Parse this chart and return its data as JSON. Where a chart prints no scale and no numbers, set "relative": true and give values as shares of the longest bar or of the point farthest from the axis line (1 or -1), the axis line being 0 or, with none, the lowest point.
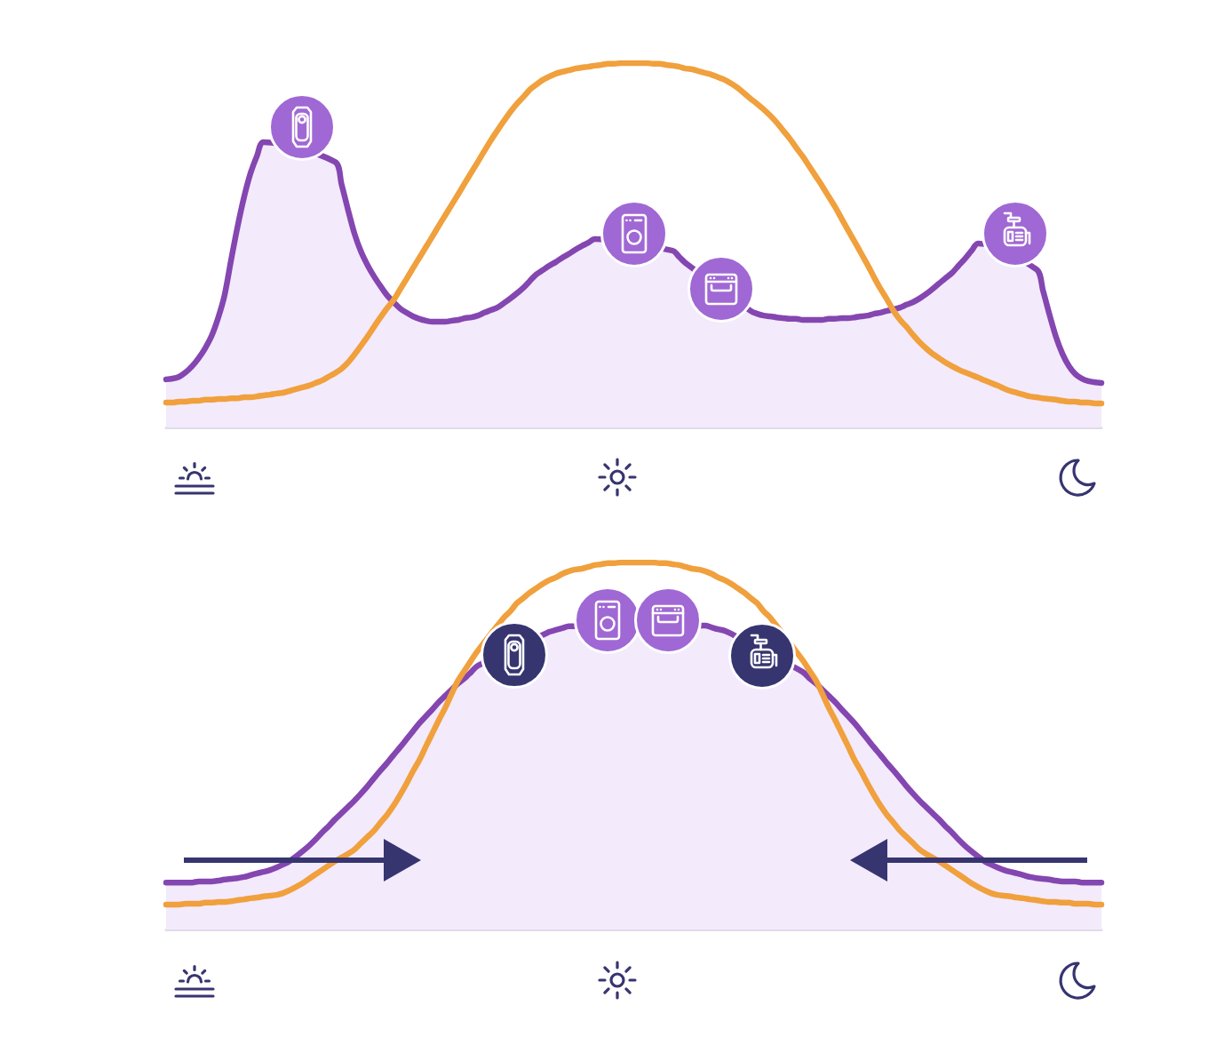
{
  "chart_data": [
    {
      "type": "line",
      "relative": true,
      "marker": "none",
      "categories": [
        null,
        null,
        null,
        null,
        null,
        null,
        null,
        null,
        null,
        null,
        null,
        null,
        null,
        null,
        null,
        null,
        null,
        null,
        null,
        null,
        null,
        null,
        null,
        null,
        null,
        null,
        null,
        null,
        null,
        null,
        null,
        null,
        null,
        null,
        null,
        null,
        null,
        null,
        null,
        null,
        null,
        null,
        null,
        null,
        null,
        null,
        null,
        null,
        null,
        null,
        null,
        null,
        null,
        null,
        null,
        null,
        null,
        null,
        null,
        null,
        null,
        null,
        null,
        null,
        null,
        null,
        null,
        null,
        null,
        null,
        null,
        null,
        null,
        null,
        null,
        null,
        null,
        null,
        null,
        null,
        null,
        null,
        null,
        null,
        null,
        null,
        null,
        null,
        null,
        null,
        null,
        null,
        null,
        null,
        null,
        null,
        null,
        null,
        null,
        null,
        null,
        null,
        null,
        null,
        null,
        null,
        null,
        null,
        null,
        null,
        null,
        null,
        null,
        null,
        null,
        null,
        null,
        null,
        null,
        null,
        null,
        null,
        null,
        null,
        null,
        null,
        null,
        null,
        null,
        null,
        null,
        null,
        null,
        null,
        null,
        null,
        null,
        null,
        null,
        null,
        null,
        null,
        null,
        null,
        null
      ],
      "series": [
        {
          "type": "area",
          "color": "#8446b0",
          "values": [
            0.132,
            0.134,
            0.139,
            0.151,
            0.168,
            0.19,
            0.217,
            0.251,
            0.3,
            0.363,
            0.459,
            0.551,
            0.632,
            0.698,
            0.746,
            0.783,
            null,
            null,
            null,
            null,
            null,
            null,
            null,
            null,
            null,
            null,
            0.729,
            0.668,
            0.598,
            0.532,
            0.483,
            0.446,
            0.415,
            0.388,
            0.363,
            0.344,
            0.327,
            0.315,
            0.305,
            0.298,
            0.293,
            0.29,
            0.29,
            0.29,
            0.293,
            0.295,
            0.3,
            0.302,
            0.307,
            0.315,
            0.322,
            0.329,
            0.341,
            0.354,
            0.368,
            0.383,
            0.402,
            0.42,
            0.432,
            0.444,
            0.454,
            0.466,
            0.476,
            0.488,
            0.498,
            0.507,
            0.517,
            null,
            null,
            null,
            null,
            null,
            null,
            null,
            null,
            null,
            null,
            null,
            0.485,
            0.468,
            0.451,
            null,
            null,
            null,
            null,
            null,
            null,
            null,
            null,
            null,
            0.32,
            0.312,
            0.307,
            0.305,
            0.302,
            0.3,
            0.298,
            0.298,
            0.295,
            0.295,
            0.295,
            0.295,
            0.298,
            0.298,
            0.3,
            0.3,
            0.302,
            0.305,
            0.307,
            0.312,
            0.315,
            0.32,
            0.324,
            0.329,
            0.337,
            0.344,
            0.354,
            0.366,
            0.38,
            0.395,
            0.41,
            0.424,
            0.444,
            0.463,
            0.485,
            0.505,
            null,
            null,
            null,
            null,
            null,
            null,
            null,
            null,
            0.434,
            0.376,
            0.31,
            0.249,
            0.202,
            0.168,
            0.146,
            0.134,
            0.127,
            0.124,
            0.122
          ]
        },
        {
          "type": "line",
          "color": "#f0a03c",
          "values": [
            0.068,
            0.068,
            0.071,
            0.071,
            0.073,
            0.073,
            0.076,
            0.076,
            0.078,
            0.078,
            0.08,
            0.08,
            0.083,
            0.083,
            0.085,
            0.088,
            0.09,
            0.093,
            0.095,
            0.1,
            0.105,
            0.11,
            0.115,
            0.122,
            0.129,
            0.139,
            0.149,
            0.161,
            0.178,
            0.2,
            0.224,
            0.249,
            0.276,
            0.302,
            0.327,
            0.349,
            0.378,
            0.407,
            0.437,
            0.466,
            0.495,
            0.524,
            0.554,
            0.583,
            0.612,
            0.641,
            0.671,
            0.7,
            0.729,
            0.759,
            0.788,
            0.815,
            0.841,
            0.866,
            0.888,
            0.907,
            0.927,
            0.941,
            0.954,
            0.963,
            0.971,
            0.976,
            0.98,
            0.985,
            0.988,
            0.99,
            0.993,
            0.995,
            0.998,
            0.998,
            1,
            1,
            1,
            1,
            1,
            0.998,
            0.998,
            0.995,
            0.993,
            0.99,
            0.985,
            0.983,
            0.978,
            0.973,
            0.968,
            0.961,
            0.954,
            0.944,
            0.932,
            0.917,
            0.902,
            0.888,
            0.873,
            0.856,
            0.837,
            0.815,
            0.793,
            0.768,
            0.744,
            0.717,
            0.69,
            0.663,
            0.634,
            0.605,
            0.573,
            0.541,
            0.51,
            0.478,
            0.446,
            0.412,
            0.38,
            0.351,
            0.32,
            0.295,
            0.276,
            0.254,
            0.234,
            0.217,
            0.202,
            0.19,
            0.178,
            0.168,
            0.159,
            0.151,
            0.144,
            0.137,
            0.129,
            0.122,
            0.115,
            0.107,
            0.1,
            0.095,
            0.09,
            0.085,
            0.083,
            0.08,
            0.078,
            0.076,
            0.073,
            0.071,
            0.071,
            0.068,
            0.068,
            0.066,
            0.066
          ]
        }
      ]
    },
    {
      "type": "line",
      "relative": true,
      "marker": "none",
      "categories": [
        null,
        null,
        null,
        null,
        null,
        null,
        null,
        null,
        null,
        null,
        null,
        null,
        null,
        null,
        null,
        null,
        null,
        null,
        null,
        null,
        null,
        null,
        null,
        null,
        null,
        null,
        null,
        null,
        null,
        null,
        null,
        null,
        null,
        null,
        null,
        null,
        null,
        null,
        null,
        null,
        null,
        null,
        null,
        null,
        null,
        null,
        null,
        null,
        null,
        null,
        null,
        null,
        null,
        null,
        null,
        null,
        null,
        null,
        null,
        null,
        null,
        null,
        null,
        null,
        null,
        null,
        null,
        null,
        null,
        null,
        null,
        null,
        null,
        null,
        null,
        null,
        null,
        null,
        null,
        null,
        null,
        null,
        null,
        null,
        null,
        null,
        null,
        null,
        null,
        null,
        null,
        null,
        null,
        null,
        null,
        null,
        null,
        null,
        null,
        null,
        null,
        null,
        null,
        null,
        null,
        null,
        null,
        null,
        null,
        null,
        null,
        null,
        null,
        null,
        null,
        null,
        null,
        null,
        null,
        null,
        null,
        null,
        null,
        null,
        null,
        null,
        null,
        null,
        null,
        null,
        null,
        null,
        null,
        null,
        null,
        null,
        null,
        null,
        null,
        null,
        null,
        null,
        null,
        null,
        null
      ],
      "series": [
        {
          "type": "area",
          "color": "#8446b0",
          "values": [
            0.128,
            0.128,
            0.128,
            0.128,
            0.128,
            0.131,
            0.131,
            0.131,
            0.133,
            0.136,
            0.138,
            0.14,
            0.143,
            0.148,
            0.153,
            0.157,
            0.162,
            0.169,
            0.177,
            0.186,
            0.199,
            0.213,
            0.228,
            0.245,
            0.264,
            0.281,
            0.3,
            0.317,
            0.334,
            0.351,
            0.37,
            0.39,
            0.412,
            0.433,
            0.453,
            0.475,
            0.496,
            0.518,
            0.54,
            0.562,
            0.581,
            0.6,
            0.62,
            0.637,
            0.654,
            0.671,
            0.685,
            0.702,
            0.719,
            null,
            null,
            null,
            null,
            null,
            null,
            null,
            null,
            null,
            null,
            0.811,
            0.816,
            0.821,
            0.826,
            null,
            null,
            null,
            null,
            null,
            null,
            null,
            null,
            null,
            null,
            null,
            null,
            null,
            null,
            null,
            null,
            null,
            null,
            null,
            null,
            0.828,
            0.823,
            0.818,
            0.814,
            0.806,
            null,
            null,
            null,
            null,
            null,
            null,
            null,
            null,
            null,
            null,
            0.702,
            0.685,
            0.671,
            0.654,
            0.637,
            0.62,
            0.6,
            0.581,
            0.562,
            0.54,
            0.518,
            0.496,
            0.475,
            0.453,
            0.433,
            0.412,
            0.39,
            0.37,
            0.351,
            0.334,
            0.317,
            0.3,
            0.281,
            0.264,
            0.245,
            0.228,
            0.213,
            0.199,
            0.186,
            0.177,
            0.169,
            0.162,
            0.157,
            0.153,
            0.148,
            0.143,
            0.14,
            0.138,
            0.136,
            0.133,
            0.131,
            0.131,
            0.131,
            0.128,
            0.128,
            0.128,
            0.128
          ]
        },
        {
          "type": "line",
          "color": "#f0a03c",
          "values": [
            0.068,
            0.068,
            0.068,
            0.07,
            0.07,
            0.07,
            0.073,
            0.073,
            0.075,
            0.075,
            0.077,
            0.08,
            0.082,
            0.085,
            0.087,
            0.09,
            0.092,
            0.094,
            0.099,
            0.107,
            0.116,
            0.126,
            0.138,
            0.15,
            0.162,
            0.174,
            0.186,
            0.196,
            0.206,
            0.218,
            0.235,
            0.252,
            0.269,
            0.291,
            0.312,
            0.337,
            0.366,
            0.397,
            0.431,
            0.462,
            0.499,
            0.535,
            0.571,
            0.605,
            0.644,
            0.68,
            0.707,
            0.734,
            0.76,
            null,
            null,
            null,
            0.85,
            0.867,
            0.889,
            0.903,
            0.918,
            0.93,
            0.942,
            0.952,
            0.959,
            0.969,
            0.976,
            0.981,
            0.983,
            0.988,
            0.993,
            0.995,
            0.998,
            0.998,
            1,
            1,
            1,
            1,
            1,
            1,
            0.998,
            0.998,
            0.995,
            0.993,
            0.988,
            0.983,
            0.981,
            0.976,
            0.969,
            0.959,
            0.952,
            0.942,
            0.93,
            0.918,
            0.903,
            0.889,
            0.867,
            0.85,
            null,
            null,
            null,
            null,
            0.734,
            0.707,
            0.68,
            0.644,
            0.605,
            0.571,
            0.535,
            0.499,
            0.462,
            0.431,
            0.397,
            0.366,
            0.337,
            0.312,
            0.291,
            0.269,
            0.252,
            0.235,
            0.218,
            0.206,
            0.196,
            0.186,
            0.174,
            0.162,
            0.15,
            0.138,
            0.126,
            0.116,
            0.107,
            0.099,
            0.094,
            0.092,
            0.09,
            0.087,
            0.085,
            0.082,
            0.08,
            0.077,
            0.075,
            0.075,
            0.073,
            0.073,
            0.07,
            0.07,
            0.07,
            0.068,
            0.068
          ]
        }
      ]
    }
  ]
}
